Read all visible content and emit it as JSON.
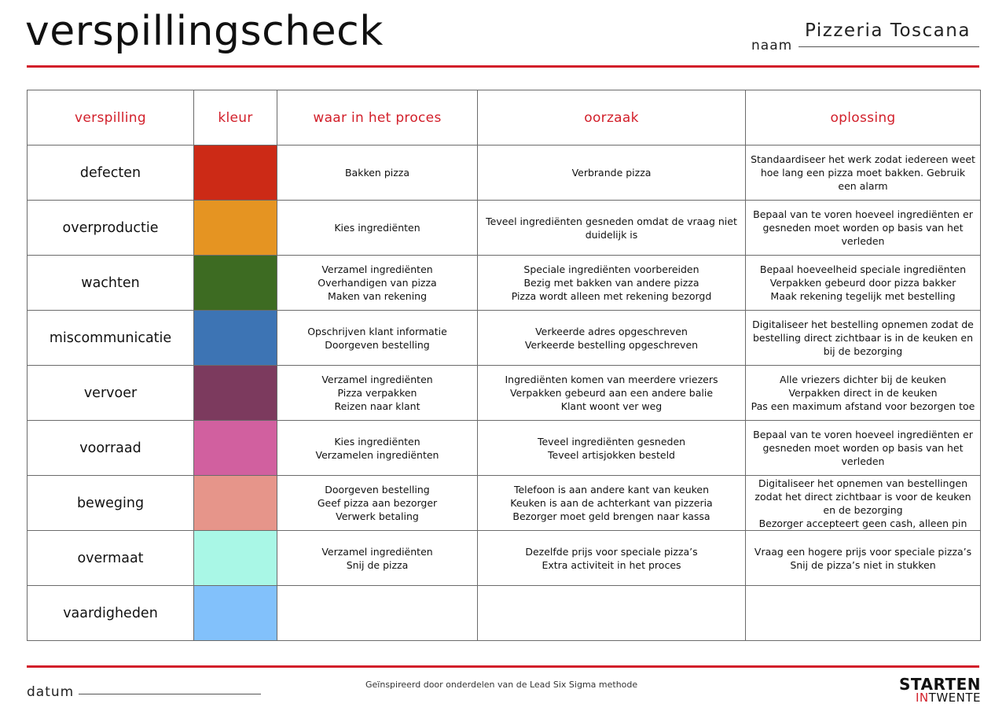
{
  "header": {
    "title": "verspillingscheck",
    "naam_label": "naam",
    "naam_value": "Pizzeria Toscana"
  },
  "table": {
    "columns": [
      "verspilling",
      "kleur",
      "waar in het proces",
      "oorzaak",
      "oplossing"
    ],
    "rows": [
      {
        "name": "defecten",
        "color": "#cc2a16",
        "process": "Bakken pizza",
        "cause": "Verbrande pizza",
        "solution": "Standaardiseer het werk zodat iedereen weet\nhoe lang een pizza moet bakken. Gebruik\neen alarm"
      },
      {
        "name": "overproductie",
        "color": "#e59422",
        "process": "Kies ingrediënten",
        "cause": "Teveel ingrediënten gesneden omdat de vraag niet\nduidelijk is",
        "solution": "Bepaal van te voren hoeveel ingrediënten er\ngesneden moet worden op basis van het\nverleden"
      },
      {
        "name": "wachten",
        "color": "#3d6b22",
        "process": "Verzamel ingrediënten\nOverhandigen van pizza\nMaken van rekening",
        "cause": "Speciale ingrediënten voorbereiden\nBezig met bakken van andere pizza\nPizza wordt alleen met rekening bezorgd",
        "solution": "Bepaal hoeveelheid speciale ingrediënten\nVerpakken gebeurd door pizza bakker\nMaak rekening tegelijk met bestelling"
      },
      {
        "name": "miscommunicatie",
        "color": "#3d74b4",
        "process": "Opschrijven klant informatie\nDoorgeven bestelling",
        "cause": "Verkeerde adres opgeschreven\nVerkeerde bestelling opgeschreven",
        "solution": "Digitaliseer het bestelling opnemen zodat de\nbestelling direct zichtbaar is in de keuken en\nbij de bezorging"
      },
      {
        "name": "vervoer",
        "color": "#7c3a5e",
        "process": "Verzamel ingrediënten\nPizza verpakken\nReizen naar klant",
        "cause": "Ingrediënten komen van meerdere vriezers\nVerpakken gebeurd aan een andere balie\nKlant woont ver weg",
        "solution": "Alle vriezers dichter bij de keuken\nVerpakken direct in de keuken\nPas een maximum afstand voor bezorgen toe"
      },
      {
        "name": "voorraad",
        "color": "#d1609f",
        "process": "Kies ingrediënten\nVerzamelen ingrediënten",
        "cause": "Teveel ingrediënten gesneden\nTeveel artisjokken besteld",
        "solution": "Bepaal van te voren hoeveel ingrediënten er\ngesneden moet worden op basis van het\nverleden"
      },
      {
        "name": "beweging",
        "color": "#e6958a",
        "process": "Doorgeven bestelling\nGeef pizza aan bezorger\nVerwerk betaling",
        "cause": "Telefoon is aan andere kant van keuken\nKeuken is aan de achterkant van pizzeria\nBezorger moet geld brengen naar kassa",
        "solution": "Digitaliseer het opnemen van bestellingen\nzodat het direct zichtbaar is voor de keuken\nen de bezorging\nBezorger accepteert geen cash, alleen pin"
      },
      {
        "name": "overmaat",
        "color": "#a9f7e6",
        "process": "Verzamel ingrediënten\nSnij de pizza",
        "cause": "Dezelfde prijs voor speciale pizza’s\nExtra activiteit in het proces",
        "solution": "Vraag een hogere prijs voor speciale pizza’s\nSnij de pizza’s niet in stukken"
      },
      {
        "name": "vaardigheden",
        "color": "#82c1fb",
        "process": "",
        "cause": "",
        "solution": ""
      }
    ]
  },
  "footer": {
    "datum_label": "datum",
    "note": "Geïnspireerd door onderdelen van de Lead Six Sigma methode",
    "logo_top": "STARTEN",
    "logo_in": "IN",
    "logo_rest": "TWENTE"
  }
}
